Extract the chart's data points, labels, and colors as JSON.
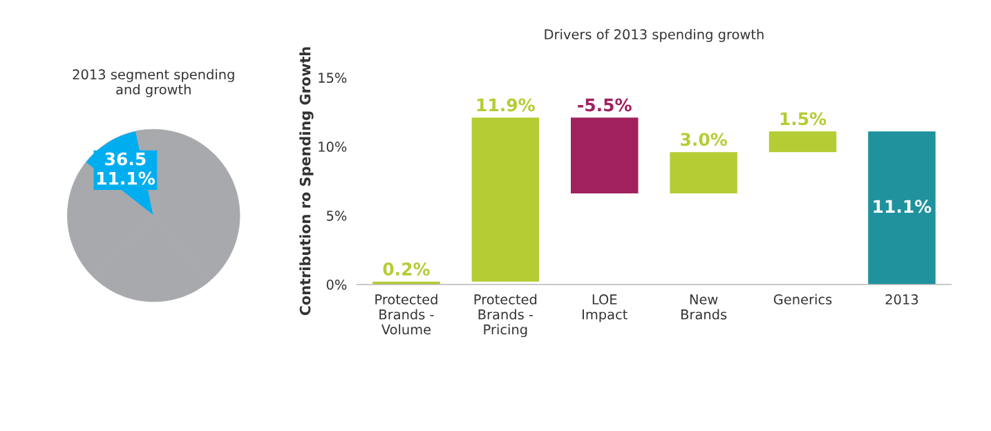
{
  "chart_data": [
    {
      "type": "pie",
      "title": "2013 segment spending\nand growth",
      "categories": [
        null,
        null,
        null,
        null,
        null
      ],
      "values": [
        39.0,
        23.4,
        23.2,
        11.1,
        3.3
      ],
      "colors": [
        "#a7a9ac",
        "#a7a9ac",
        "#a7a9ac",
        "#00aeef",
        "#a7a9ac"
      ],
      "value_labels": [
        null,
        null,
        null,
        "36.5\n11.1%",
        null
      ]
    },
    {
      "type": "bar",
      "title": "Drivers of 2013 spending growth",
      "ylabel": "Contribution ro Spending Growth",
      "categories": [
        "Protected\nBrands -\nVolume",
        "Protected\nBrands -\nPricing",
        "LOE\nImpact",
        "New\nBrands",
        "Generics",
        "2013"
      ],
      "values": [
        0.2,
        11.9,
        -5.5,
        3.0,
        1.5,
        11.1
      ],
      "base": [
        0,
        0.2,
        12.1,
        6.6,
        9.6,
        0
      ],
      "colors": [
        "#b5cc34",
        "#b5cc34",
        "#a0215e",
        "#b5cc34",
        "#b5cc34",
        "#1f929e"
      ],
      "value_labels": [
        "0.2%",
        "11.9%",
        "-5.5%",
        "3.0%",
        "1.5%",
        "11.1%"
      ],
      "ylim": [
        0,
        15
      ],
      "yticks": [
        {
          "value": 0,
          "label": "0%"
        },
        {
          "value": 5,
          "label": "5%"
        },
        {
          "value": 10,
          "label": "10%"
        },
        {
          "value": 15,
          "label": "15%"
        }
      ],
      "grid": false,
      "legend": false
    }
  ]
}
